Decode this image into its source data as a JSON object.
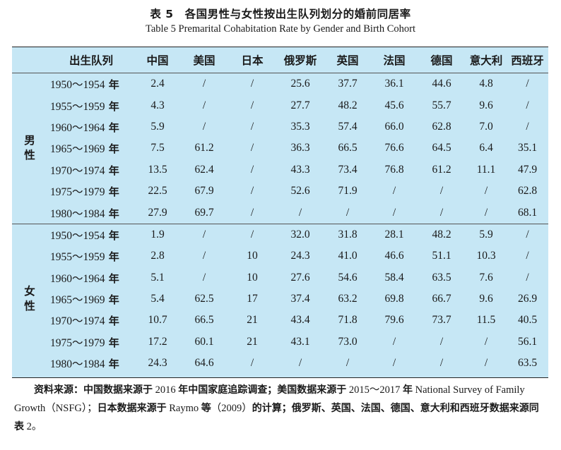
{
  "caption": {
    "cn": "表 5　各国男性与女性按出生队列划分的婚前同居率",
    "en": "Table 5    Premarital Cohabitation Rate by Gender and Birth Cohort"
  },
  "table": {
    "headers": [
      "出生队列",
      "中国",
      "美国",
      "日本",
      "俄罗斯",
      "英国",
      "法国",
      "德国",
      "意大利",
      "西班牙"
    ],
    "groups": [
      {
        "label_line1": "男",
        "label_line2": "性",
        "rows": [
          {
            "cohort": "1950～1954",
            "nian": "年",
            "values": [
              "2.4",
              "/",
              "/",
              "25.6",
              "37.7",
              "36.1",
              "44.6",
              "4.8",
              "/"
            ]
          },
          {
            "cohort": "1955～1959",
            "nian": "年",
            "values": [
              "4.3",
              "/",
              "/",
              "27.7",
              "48.2",
              "45.6",
              "55.7",
              "9.6",
              "/"
            ]
          },
          {
            "cohort": "1960～1964",
            "nian": "年",
            "values": [
              "5.9",
              "/",
              "/",
              "35.3",
              "57.4",
              "66.0",
              "62.8",
              "7.0",
              "/"
            ]
          },
          {
            "cohort": "1965～1969",
            "nian": "年",
            "values": [
              "7.5",
              "61.2",
              "/",
              "36.3",
              "66.5",
              "76.6",
              "64.5",
              "6.4",
              "35.1"
            ]
          },
          {
            "cohort": "1970～1974",
            "nian": "年",
            "values": [
              "13.5",
              "62.4",
              "/",
              "43.3",
              "73.4",
              "76.8",
              "61.2",
              "11.1",
              "47.9"
            ]
          },
          {
            "cohort": "1975～1979",
            "nian": "年",
            "values": [
              "22.5",
              "67.9",
              "/",
              "52.6",
              "71.9",
              "/",
              "/",
              "/",
              "62.8"
            ]
          },
          {
            "cohort": "1980～1984",
            "nian": "年",
            "values": [
              "27.9",
              "69.7",
              "/",
              "/",
              "/",
              "/",
              "/",
              "/",
              "68.1"
            ]
          }
        ]
      },
      {
        "label_line1": "女",
        "label_line2": "性",
        "rows": [
          {
            "cohort": "1950～1954",
            "nian": "年",
            "values": [
              "1.9",
              "/",
              "/",
              "32.0",
              "31.8",
              "28.1",
              "48.2",
              "5.9",
              "/"
            ]
          },
          {
            "cohort": "1955～1959",
            "nian": "年",
            "values": [
              "2.8",
              "/",
              "10",
              "24.3",
              "41.0",
              "46.6",
              "51.1",
              "10.3",
              "/"
            ]
          },
          {
            "cohort": "1960～1964",
            "nian": "年",
            "values": [
              "5.1",
              "/",
              "10",
              "27.6",
              "54.6",
              "58.4",
              "63.5",
              "7.6",
              "/"
            ]
          },
          {
            "cohort": "1965～1969",
            "nian": "年",
            "values": [
              "5.4",
              "62.5",
              "17",
              "37.4",
              "63.2",
              "69.8",
              "66.7",
              "9.6",
              "26.9"
            ]
          },
          {
            "cohort": "1970～1974",
            "nian": "年",
            "values": [
              "10.7",
              "66.5",
              "21",
              "43.4",
              "71.8",
              "79.6",
              "73.7",
              "11.5",
              "40.5"
            ]
          },
          {
            "cohort": "1975～1979",
            "nian": "年",
            "values": [
              "17.2",
              "60.1",
              "21",
              "43.1",
              "73.0",
              "/",
              "/",
              "/",
              "56.1"
            ]
          },
          {
            "cohort": "1980～1984",
            "nian": "年",
            "values": [
              "24.3",
              "64.6",
              "/",
              "/",
              "/",
              "/",
              "/",
              "/",
              "63.5"
            ]
          }
        ]
      }
    ]
  },
  "source": {
    "segments": [
      {
        "t": "资料来源：中国数据来源于",
        "cn": true
      },
      {
        "t": " 2016 ",
        "cn": false
      },
      {
        "t": "年中国家庭追踪调查；美国数据来源于",
        "cn": true
      },
      {
        "t": " 2015～2017 ",
        "cn": false
      },
      {
        "t": "年",
        "cn": true
      },
      {
        "t": " National Survey of Family Growth（NSFG）；",
        "cn": false
      },
      {
        "t": "日本数据来源于",
        "cn": true
      },
      {
        "t": " Raymo ",
        "cn": false
      },
      {
        "t": "等",
        "cn": true
      },
      {
        "t": "（2009）",
        "cn": false
      },
      {
        "t": "的计算；俄罗斯、英国、法国、德国、意大利和西班牙数据来源同表",
        "cn": true
      },
      {
        "t": " 2。",
        "cn": false
      }
    ]
  }
}
